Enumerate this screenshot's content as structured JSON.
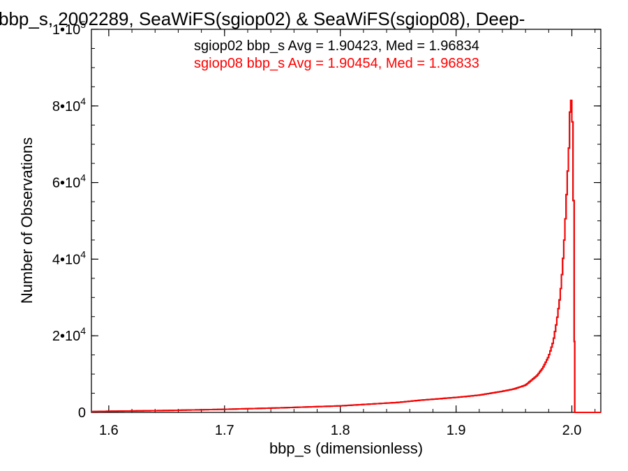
{
  "chart_data": {
    "type": "line",
    "title": "bbp_s, 2002289, SeaWiFS(sgiop02) & SeaWiFS(sgiop08), Deep-",
    "xlabel": "bbp_s (dimensionless)",
    "ylabel": "Number of Observations",
    "xlim": [
      1.585,
      2.025
    ],
    "ylim": [
      0,
      100000
    ],
    "x_ticks": [
      1.6,
      1.7,
      1.8,
      1.9,
      2.0
    ],
    "x_tick_labels": [
      "1.6",
      "1.7",
      "1.8",
      "1.9",
      "2.0"
    ],
    "y_ticks": [
      {
        "value": 0,
        "mantissa": "0",
        "exp": ""
      },
      {
        "value": 20000,
        "mantissa": "2•10",
        "exp": "4"
      },
      {
        "value": 40000,
        "mantissa": "4•10",
        "exp": "4"
      },
      {
        "value": 60000,
        "mantissa": "6•10",
        "exp": "4"
      },
      {
        "value": 80000,
        "mantissa": "8•10",
        "exp": "4"
      },
      {
        "value": 100000,
        "mantissa": "1•10",
        "exp": "5"
      }
    ],
    "legend": {
      "placement": "top-right",
      "entries": [
        {
          "text": "sgiop02 bbp_s Avg = 1.90423, Med = 1.96834",
          "color": "#000000"
        },
        {
          "text": "sgiop08 bbp_s Avg = 1.90454, Med = 1.96833",
          "color": "#ff0000"
        }
      ]
    },
    "series": [
      {
        "color": "#000000",
        "x": [
          1.585,
          1.6,
          1.65,
          1.7,
          1.75,
          1.8,
          1.85,
          1.87,
          1.9,
          1.92,
          1.94,
          1.95,
          1.96,
          1.97,
          1.975,
          1.98,
          1.984,
          1.987,
          1.99,
          1.992,
          1.994,
          1.996,
          1.998,
          1.999,
          2.0,
          2.001,
          2.002,
          2.0025
        ],
        "y": [
          200,
          300,
          500,
          800,
          1200,
          1700,
          2600,
          3200,
          3900,
          4500,
          5500,
          6100,
          7100,
          9600,
          11600,
          14600,
          18500,
          23700,
          30500,
          37800,
          47400,
          60000,
          72000,
          84800,
          78100,
          73600,
          37000,
          0
        ]
      },
      {
        "color": "#ff0000",
        "x": [
          1.585,
          1.6,
          1.65,
          1.7,
          1.75,
          1.8,
          1.85,
          1.87,
          1.9,
          1.92,
          1.94,
          1.95,
          1.96,
          1.97,
          1.975,
          1.98,
          1.984,
          1.987,
          1.99,
          1.992,
          1.994,
          1.996,
          1.998,
          1.999,
          2.0,
          2.001,
          2.002,
          2.0025
        ],
        "y": [
          200,
          300,
          500,
          800,
          1200,
          1700,
          2600,
          3200,
          3900,
          4500,
          5500,
          6100,
          7100,
          9600,
          11600,
          14600,
          18500,
          23700,
          30500,
          37800,
          47400,
          60000,
          72000,
          84800,
          78100,
          73600,
          37000,
          0
        ]
      }
    ]
  }
}
